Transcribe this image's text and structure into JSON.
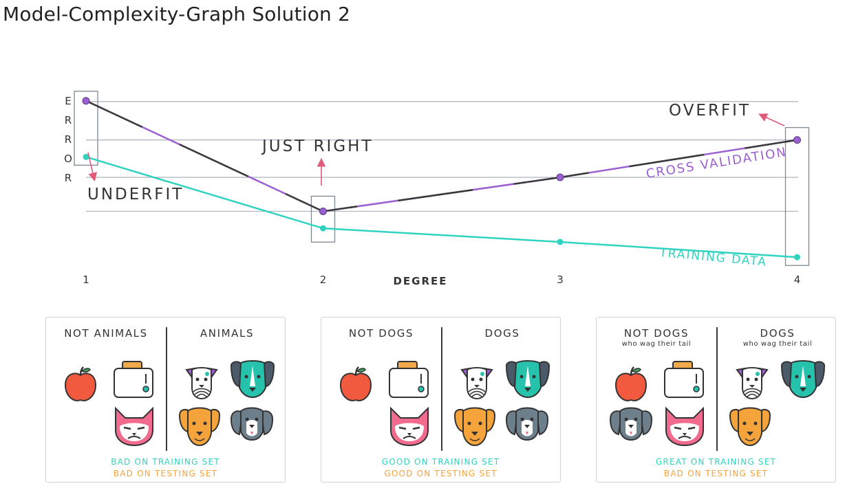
{
  "title": "Model-Complexity-Graph Solution 2",
  "colors": {
    "training": "#2fd3c0",
    "cv": "#9b5fd1",
    "pink": "#e05a7a",
    "grid": "#aab3ba",
    "apple": "#f15a3e",
    "orange_dog": "#f5a33b",
    "teal_dog": "#26c2ac",
    "gray_dog": "#6e7f8c",
    "cat": "#f06b8e",
    "toast": "#f0a94a",
    "bad": "#2fd3c0",
    "bad_test": "#f5a33b"
  },
  "chart_data": {
    "type": "line",
    "title": "",
    "xlabel": "DEGREE",
    "ylabel": "ERROR",
    "ylabel_letters": [
      "E",
      "R",
      "R",
      "O",
      "R"
    ],
    "x": [
      1,
      2,
      3,
      4
    ],
    "series": [
      {
        "name": "CROSS VALIDATION",
        "values": [
          10,
          3.5,
          5.5,
          7.7
        ]
      },
      {
        "name": "TRAINING DATA",
        "values": [
          6.7,
          2.5,
          1.7,
          0.8
        ]
      }
    ],
    "ylim": [
      0,
      11
    ],
    "grid": true,
    "annotations": {
      "underfit": "UNDERFIT",
      "just_right": "JUST RIGHT",
      "overfit": "OVERFIT"
    }
  },
  "panels": [
    {
      "left_head": "NOT ANIMALS",
      "left_sub": "",
      "right_head": "ANIMALS",
      "right_sub": "",
      "line1": "BAD ON TRAINING SET",
      "line1_color": "#2fd3c0",
      "line2": "BAD ON TESTING SET",
      "line2_color": "#f5a33b",
      "left_icons": [
        "apple-icon",
        "toaster-icon",
        "cat-icon"
      ],
      "right_icons": [
        "dalmatian-icon",
        "teal-dog-icon",
        "orange-dog-icon",
        "gray-dog-icon"
      ]
    },
    {
      "left_head": "NOT DOGS",
      "left_sub": "",
      "right_head": "DOGS",
      "right_sub": "",
      "line1": "GOOD ON TRAINING SET",
      "line1_color": "#2fd3c0",
      "line2": "GOOD ON TESTING SET",
      "line2_color": "#f5a33b",
      "left_icons": [
        "apple-icon",
        "toaster-icon",
        "cat-icon"
      ],
      "right_icons": [
        "dalmatian-icon",
        "teal-dog-icon",
        "orange-dog-icon",
        "gray-dog-icon"
      ]
    },
    {
      "left_head": "NOT DOGS",
      "left_sub": "who wag their tail",
      "right_head": "DOGS",
      "right_sub": "who wag their tail",
      "line1": "GREAT ON TRAINING SET",
      "line1_color": "#2fd3c0",
      "line2": "BAD ON TESTING SET",
      "line2_color": "#f5a33b",
      "left_icons": [
        "apple-icon",
        "toaster-icon",
        "gray-dog-icon",
        "cat-icon"
      ],
      "right_icons": [
        "dalmatian-icon",
        "teal-dog-icon",
        "orange-dog-icon"
      ]
    }
  ]
}
